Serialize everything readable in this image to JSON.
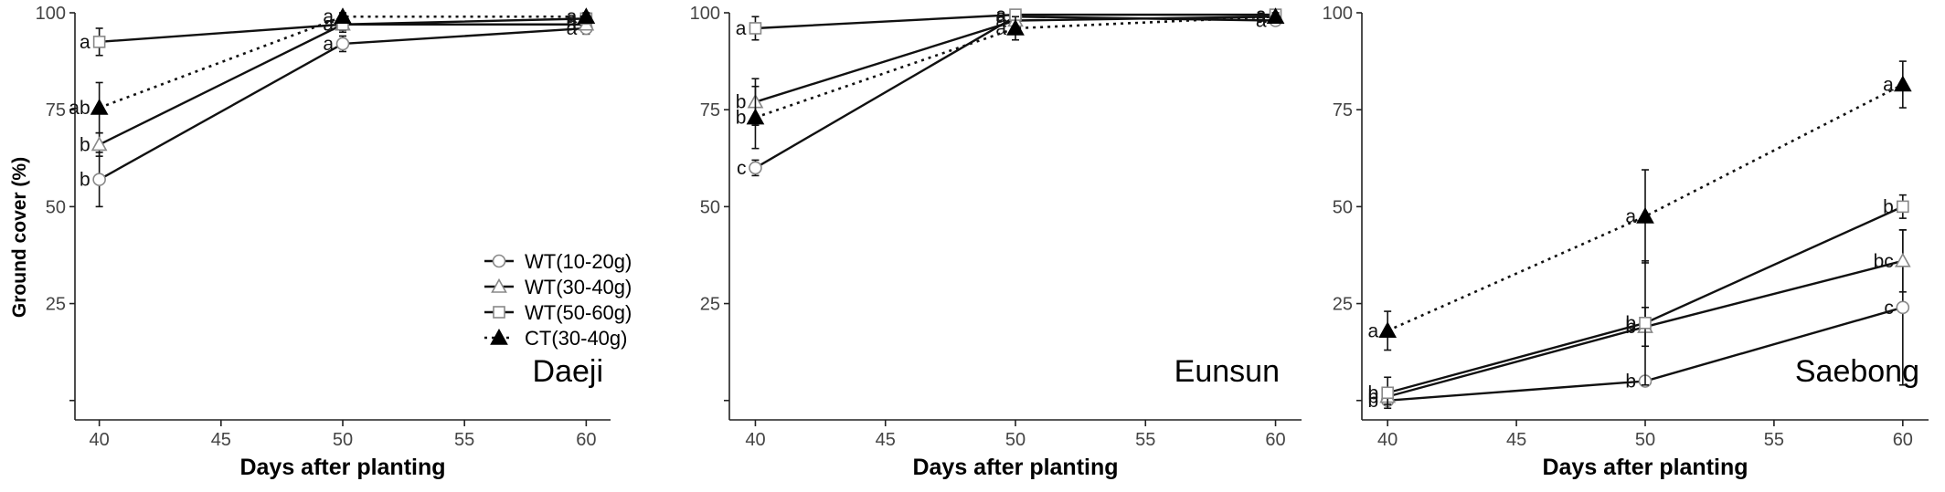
{
  "ylabel": "Ground cover (%)",
  "legend": [
    {
      "label": "WT(10-20g)",
      "marker": "circle",
      "dash": "solid"
    },
    {
      "label": "WT(30-40g)",
      "marker": "triangle-open",
      "dash": "solid"
    },
    {
      "label": "WT(50-60g)",
      "marker": "square",
      "dash": "solid"
    },
    {
      "label": "CT(30-40g)",
      "marker": "triangle-filled",
      "dash": "dotted"
    }
  ],
  "colors": {
    "line": "#111111",
    "open_marker": "#888888",
    "filled_marker": "#000000"
  },
  "chart_data": [
    {
      "type": "line",
      "title": "Daeji",
      "xlabel": "Days after planting",
      "ylabel": "Ground cover (%)",
      "x": [
        40,
        50,
        60
      ],
      "xlim": [
        39,
        61
      ],
      "ylim": [
        -5,
        100
      ],
      "x_ticks": [
        40,
        45,
        50,
        55,
        60
      ],
      "y_ticks": [
        25,
        50,
        75,
        100
      ],
      "grid": false,
      "legend_position": "bottom-right",
      "series": [
        {
          "name": "WT(10-20g)",
          "values": [
            57,
            92,
            96
          ],
          "errors": [
            7,
            2,
            1.5
          ],
          "labels": [
            "b",
            "a",
            "a"
          ]
        },
        {
          "name": "WT(30-40g)",
          "values": [
            66,
            97,
            97
          ],
          "errors": [
            3,
            2,
            1
          ],
          "labels": [
            "b",
            "a",
            "a"
          ]
        },
        {
          "name": "WT(50-60g)",
          "values": [
            92.5,
            97,
            98.5
          ],
          "errors": [
            3.5,
            1.5,
            1
          ],
          "labels": [
            "a",
            "a",
            "a"
          ]
        },
        {
          "name": "CT(30-40g)",
          "values": [
            75.5,
            99,
            99
          ],
          "errors": [
            6.5,
            1,
            1
          ],
          "labels": [
            "ab",
            "a",
            "a"
          ]
        }
      ]
    },
    {
      "type": "line",
      "title": "Eunsun",
      "xlabel": "Days after planting",
      "ylabel": "",
      "x": [
        40,
        50,
        60
      ],
      "xlim": [
        39,
        61
      ],
      "ylim": [
        -5,
        100
      ],
      "x_ticks": [
        40,
        45,
        50,
        55,
        60
      ],
      "y_ticks": [
        25,
        50,
        75,
        100
      ],
      "grid": false,
      "series": [
        {
          "name": "WT(10-20g)",
          "values": [
            60,
            99,
            98
          ],
          "errors": [
            2,
            1,
            1
          ],
          "labels": [
            "c",
            "a",
            "a"
          ]
        },
        {
          "name": "WT(30-40g)",
          "values": [
            77,
            98,
            99
          ],
          "errors": [
            6,
            1,
            1
          ],
          "labels": [
            "b",
            "a",
            "a"
          ]
        },
        {
          "name": "WT(50-60g)",
          "values": [
            96,
            99.5,
            99.5
          ],
          "errors": [
            3,
            0.5,
            0.5
          ],
          "labels": [
            "a",
            "a",
            "a"
          ]
        },
        {
          "name": "CT(30-40g)",
          "values": [
            73,
            96,
            99
          ],
          "errors": [
            8,
            3,
            1
          ],
          "labels": [
            "b",
            "a",
            "a"
          ]
        }
      ]
    },
    {
      "type": "line",
      "title": "Saebong",
      "xlabel": "Days after planting",
      "ylabel": "",
      "x": [
        40,
        50,
        60
      ],
      "xlim": [
        39,
        61
      ],
      "ylim": [
        -5,
        100
      ],
      "x_ticks": [
        40,
        45,
        50,
        55,
        60
      ],
      "y_ticks": [
        25,
        50,
        75,
        100
      ],
      "grid": false,
      "series": [
        {
          "name": "WT(10-20g)",
          "values": [
            0,
            5,
            24
          ],
          "errors": [
            1,
            1,
            20
          ],
          "labels": [
            "b",
            "b",
            "c"
          ]
        },
        {
          "name": "WT(30-40g)",
          "values": [
            1,
            19,
            36
          ],
          "errors": [
            2,
            5,
            8
          ],
          "labels": [
            "b",
            "b",
            "bc"
          ]
        },
        {
          "name": "WT(50-60g)",
          "values": [
            2,
            20,
            50
          ],
          "errors": [
            4,
            16,
            3
          ],
          "labels": [
            "b",
            "b",
            "b"
          ]
        },
        {
          "name": "CT(30-40g)",
          "values": [
            18,
            47.5,
            81.5
          ],
          "errors": [
            5,
            12,
            6
          ],
          "labels": [
            "a",
            "a",
            "a"
          ]
        }
      ]
    }
  ]
}
